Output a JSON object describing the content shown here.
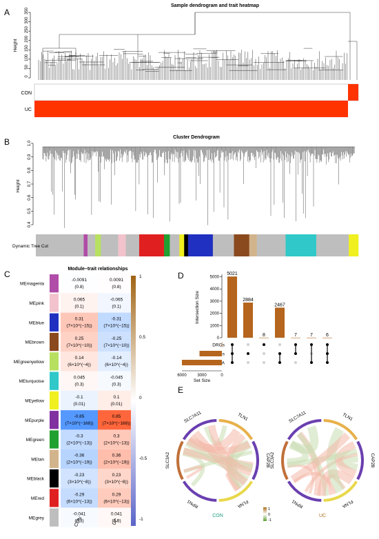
{
  "panel_labels": {
    "a": "A",
    "b": "B",
    "c": "C",
    "d": "D",
    "e": "E"
  },
  "panel_a": {
    "title": "Sample dendrogram and trait heatmap",
    "ylabel": "Height",
    "yticks": [
      0,
      50,
      100,
      150,
      200,
      250,
      300,
      350
    ],
    "traits": [
      {
        "name": "CON",
        "color": "#ff3300"
      },
      {
        "name": "UC",
        "color": "#ff3300"
      }
    ]
  },
  "panel_b": {
    "title": "Cluster Dendrogram",
    "ylabel": "Height",
    "yticks": [
      "0.4",
      "0.5",
      "0.6",
      "0.7",
      "0.8",
      "0.9",
      "1.0"
    ],
    "colorbar_label": "Dynamic Tree Cut"
  },
  "panel_c": {
    "title": "Module–trait relationships",
    "columns": [
      "CON",
      "UC"
    ],
    "legend_ticks": [
      "1",
      "0.5",
      "0",
      "-0.5",
      "-1"
    ],
    "rows": [
      {
        "name": "MEmagenta",
        "color": "#b04da8",
        "con": "-0.0091",
        "con_p": "(0.8)",
        "uc": "0.0091",
        "uc_p": "(0.8)",
        "r": -0.0091
      },
      {
        "name": "MEpink",
        "color": "#f2c3cc",
        "con": "0.065",
        "con_p": "(0.1)",
        "uc": "-0.065",
        "uc_p": "(0.1)",
        "r": 0.065
      },
      {
        "name": "MEblue",
        "color": "#2030c0",
        "con": "0.31",
        "con_p": "(7×10^(−15))",
        "uc": "-0.31",
        "uc_p": "(7×10^(−15))",
        "r": 0.31
      },
      {
        "name": "MEbrown",
        "color": "#8a4a1e",
        "con": "0.25",
        "con_p": "(7×10^(−10))",
        "uc": "-0.25",
        "uc_p": "(7×10^(−10))",
        "r": 0.25
      },
      {
        "name": "MEgreenyellow",
        "color": "#b8e060",
        "con": "0.14",
        "con_p": "(6×10^(−4))",
        "uc": "-0.14",
        "uc_p": "(6×10^(−4))",
        "r": 0.14
      },
      {
        "name": "MEturquoise",
        "color": "#30c8c8",
        "con": "0.045",
        "con_p": "(0.3)",
        "uc": "-0.045",
        "uc_p": "(0.3)",
        "r": 0.045
      },
      {
        "name": "MEyellow",
        "color": "#f0f020",
        "con": "-0.1",
        "con_p": "(0.01)",
        "uc": "0.1",
        "uc_p": "(0.01)",
        "r": -0.1
      },
      {
        "name": "MEpurple",
        "color": "#8030a0",
        "con": "-0.85",
        "con_p": "(7×10^(−168))",
        "uc": "0.85",
        "uc_p": "(7×10^(−168))",
        "r": -0.85
      },
      {
        "name": "MEgreen",
        "color": "#20a030",
        "con": "-0.3",
        "con_p": "(2×10^(−13))",
        "uc": "0.3",
        "uc_p": "(2×10^(−13))",
        "r": -0.3
      },
      {
        "name": "MEtan",
        "color": "#d2b48c",
        "con": "-0.36",
        "con_p": "(2×10^(−19))",
        "uc": "0.36",
        "uc_p": "(2×10^(−19))",
        "r": -0.36
      },
      {
        "name": "MEblack",
        "color": "#000000",
        "con": "-0.23",
        "con_p": "(3×10^(−8))",
        "uc": "0.23",
        "uc_p": "(3×10^(−8))",
        "r": -0.23
      },
      {
        "name": "MEred",
        "color": "#e02020",
        "con": "-0.29",
        "con_p": "(6×10^(−13))",
        "uc": "0.29",
        "uc_p": "(6×10^(−13))",
        "r": -0.29
      },
      {
        "name": "MEgrey",
        "color": "#bebebe",
        "con": "-0.041",
        "con_p": "(0.3)",
        "uc": "0.041",
        "uc_p": "(0.3)",
        "r": -0.041
      }
    ]
  },
  "panel_d": {
    "ylabel": "Intersection Size",
    "yticks": [
      0,
      1000,
      2000,
      3000,
      4000,
      5000
    ],
    "bars": [
      5021,
      2884,
      8,
      2467,
      7,
      7,
      6
    ],
    "bar_labels": [
      "5021",
      "2884",
      "8",
      "2467",
      "7",
      "7",
      "6"
    ],
    "sets": [
      "DRGs",
      "DEGs",
      "WGCNA"
    ],
    "set_size_label": "Set Size",
    "set_size_ticks": [
      "6000",
      "3000",
      "0"
    ],
    "set_sizes": [
      27,
      4200,
      7500
    ],
    "matrix": [
      [
        0,
        1,
        2
      ],
      [
        1
      ],
      [
        0
      ],
      [
        1,
        2
      ],
      [
        0,
        1
      ],
      [
        0,
        2
      ],
      [
        0,
        1,
        2
      ]
    ]
  },
  "panel_e": {
    "con_label": "CON",
    "uc_label": "UC",
    "genes": [
      "TLN1",
      "CAP2B",
      "FLNA",
      "RPN1",
      "SLC3A2",
      "SLC7A11"
    ],
    "legend_ticks": [
      "1",
      "0",
      "-1"
    ]
  }
}
